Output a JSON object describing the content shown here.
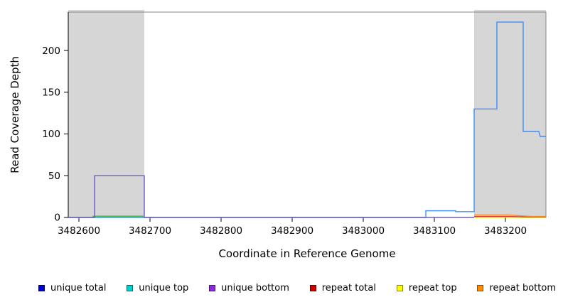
{
  "chart_data": {
    "type": "line",
    "title": "",
    "xlabel": "Coordinate in Reference Genome",
    "ylabel": "Read Coverage Depth",
    "xlim": [
      3482585,
      3483257
    ],
    "ylim": [
      0,
      246
    ],
    "xticks": [
      3482600,
      3482700,
      3482800,
      3482900,
      3483000,
      3483100,
      3483200
    ],
    "yticks": [
      0,
      50,
      100,
      150,
      200
    ],
    "grid": false,
    "plot_background": "#ffffff",
    "shaded_region_color": "#d6d6d6",
    "shaded_regions": [
      {
        "label": "shaded-region-left",
        "x0": 3482585,
        "x1": 3482692,
        "color": "#d6d6d6"
      },
      {
        "label": "shaded-region-right",
        "x0": 3483156,
        "x1": 3483257,
        "color": "#d6d6d6"
      }
    ],
    "series": [
      {
        "name": "repeat top",
        "color": "#ffff00",
        "points": [
          [
            3483156,
            0.2
          ],
          [
            3483257,
            0.2
          ]
        ]
      },
      {
        "name": "repeat total",
        "color": "#d42a2a",
        "points": [
          [
            3483156,
            1
          ],
          [
            3483210,
            1
          ],
          [
            3483232,
            0.5
          ],
          [
            3483257,
            0.5
          ]
        ]
      },
      {
        "name": "repeat bottom",
        "color": "#ff8c2a",
        "points": [
          [
            3483156,
            3
          ],
          [
            3483205,
            3
          ],
          [
            3483222,
            2
          ],
          [
            3483237,
            1.2
          ],
          [
            3483257,
            1.2
          ]
        ]
      },
      {
        "name": "unique top",
        "color": "#3cb44b",
        "points": [
          [
            3482620,
            0
          ],
          [
            3482620,
            1.5
          ],
          [
            3482690,
            1.5
          ],
          [
            3482690,
            0
          ]
        ]
      },
      {
        "name": "unique total",
        "color": "#3f8efc",
        "points": [
          [
            3482585,
            0
          ],
          [
            3483088,
            0
          ],
          [
            3483088,
            8
          ],
          [
            3483130,
            8
          ],
          [
            3483130,
            7
          ],
          [
            3483156,
            7
          ],
          [
            3483156,
            130
          ],
          [
            3483188,
            130
          ],
          [
            3483188,
            234
          ],
          [
            3483225,
            234
          ],
          [
            3483225,
            103
          ],
          [
            3483247,
            103
          ],
          [
            3483249,
            97
          ],
          [
            3483257,
            97
          ]
        ]
      },
      {
        "name": "unique bottom",
        "color": "#6a5acd",
        "points": [
          [
            3482585,
            0
          ],
          [
            3482622,
            0
          ],
          [
            3482622,
            50
          ],
          [
            3482692,
            50
          ],
          [
            3482692,
            0
          ],
          [
            3483156,
            0
          ]
        ]
      }
    ],
    "legend_position": "bottom",
    "legend": [
      {
        "label": "unique total",
        "color": "#0000cd"
      },
      {
        "label": "unique top",
        "color": "#00ced1"
      },
      {
        "label": "unique bottom",
        "color": "#8a2be2"
      },
      {
        "label": "repeat total",
        "color": "#cd0000"
      },
      {
        "label": "repeat top",
        "color": "#ffff00"
      },
      {
        "label": "repeat bottom",
        "color": "#ff8c00"
      }
    ]
  }
}
